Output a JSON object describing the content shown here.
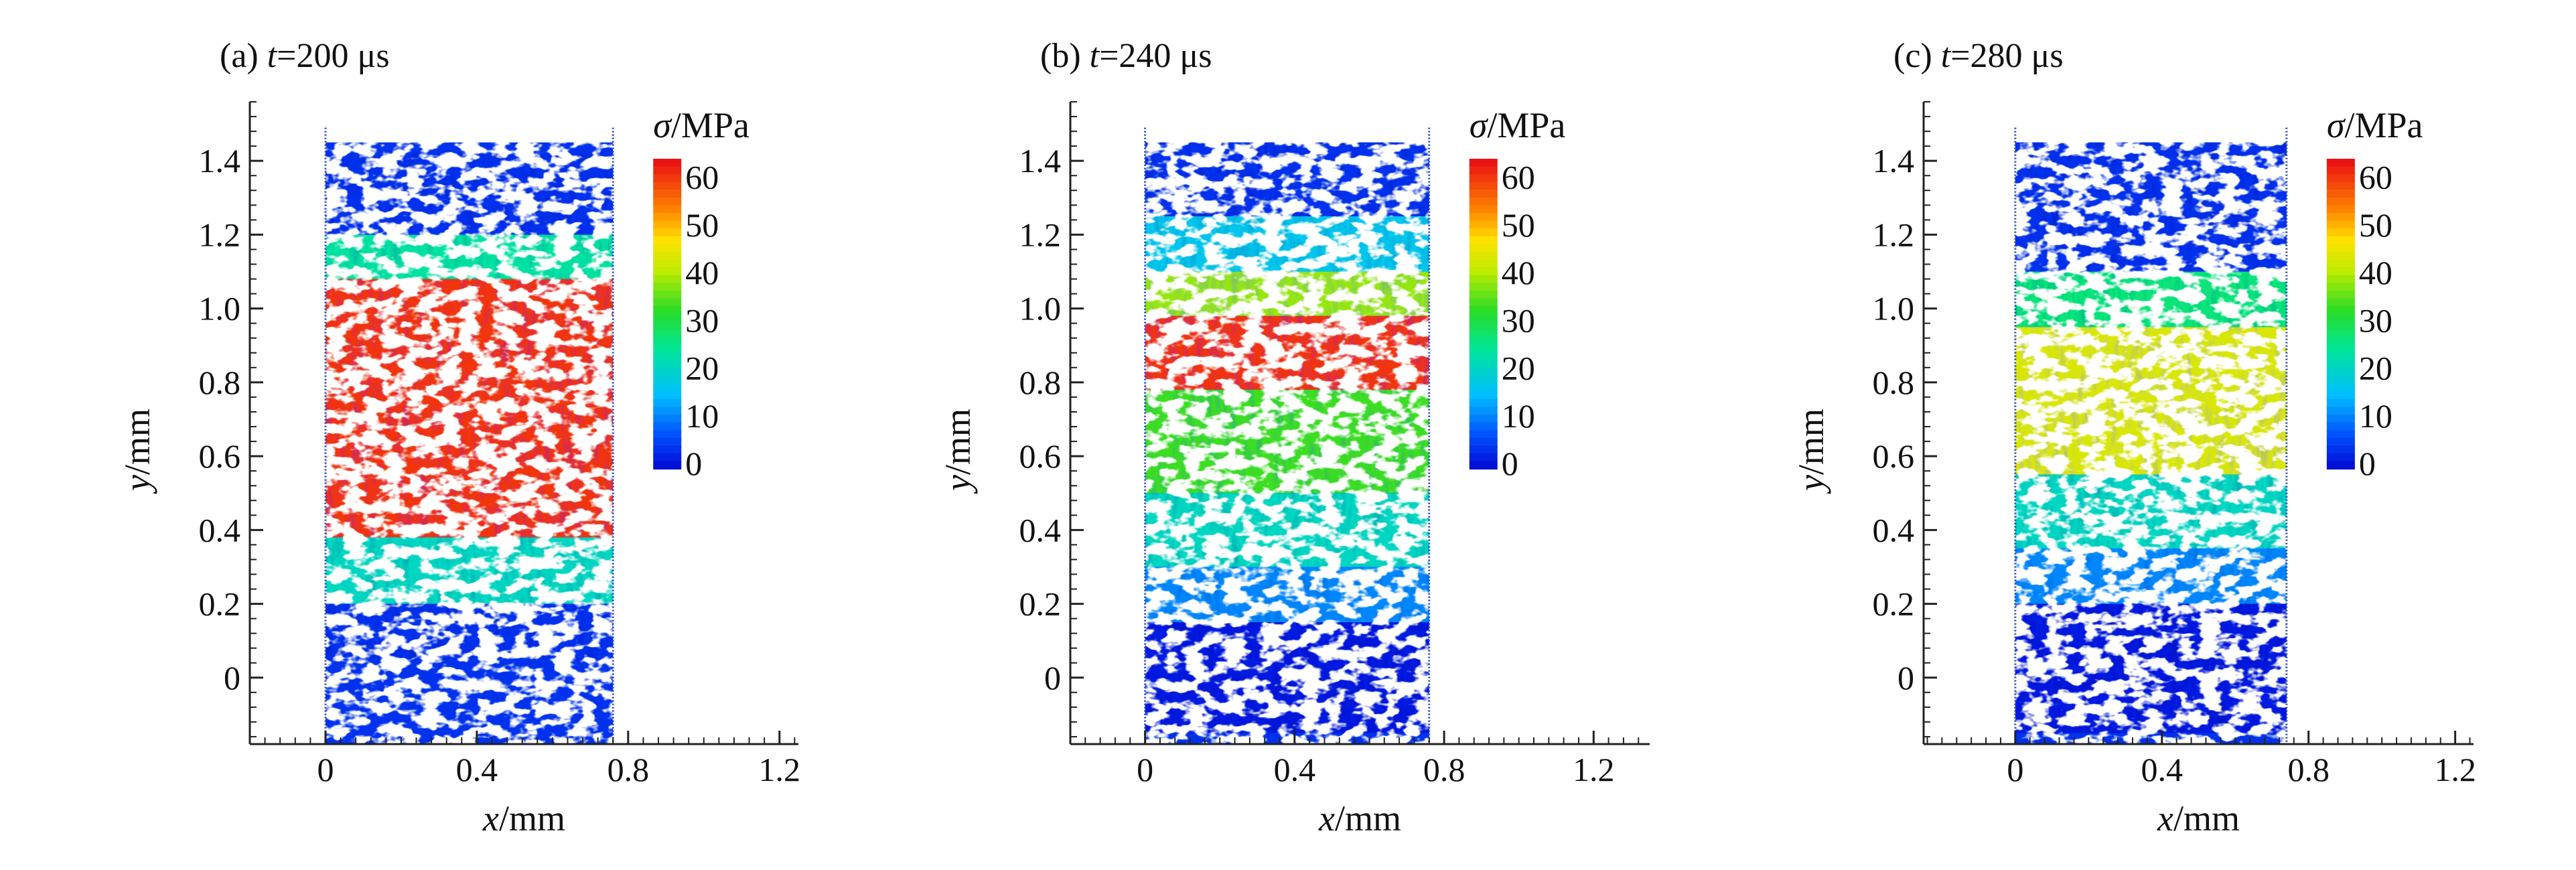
{
  "chart_data": [
    {
      "type": "heatmap",
      "panel_label": "(a)",
      "time_var": "t",
      "time_value": "=200 μs",
      "xlabel_var": "x",
      "xlabel_unit": "/mm",
      "ylabel_var": "y",
      "ylabel_unit": "/mm",
      "xlim": [
        -0.2,
        1.25
      ],
      "ylim": [
        -0.18,
        1.56
      ],
      "x_ticks": [
        "0",
        "0.4",
        "0.8",
        "1.2"
      ],
      "y_ticks": [
        "0",
        "0.2",
        "0.4",
        "0.6",
        "0.8",
        "1.0",
        "1.2",
        "1.4"
      ],
      "specimen_x_range": [
        0,
        0.76
      ],
      "colorbar": {
        "title_var": "σ",
        "title_unit": "/MPa",
        "ticks": [
          "60",
          "50",
          "40",
          "30",
          "20",
          "10",
          "0"
        ],
        "range": [
          0,
          65
        ]
      },
      "stress_bands": [
        {
          "y_range": [
            0.38,
            1.08
          ],
          "stress_MPa": 62
        },
        {
          "y_range": [
            1.08,
            1.2
          ],
          "stress_MPa": 25
        },
        {
          "y_range": [
            0.2,
            0.38
          ],
          "stress_MPa": 22
        },
        {
          "y_range": [
            1.2,
            1.42
          ],
          "stress_MPa": 5
        },
        {
          "y_range": [
            0.05,
            0.2
          ],
          "stress_MPa": 5
        }
      ]
    },
    {
      "type": "heatmap",
      "panel_label": "(b)",
      "time_var": "t",
      "time_value": "=240 μs",
      "xlabel_var": "x",
      "xlabel_unit": "/mm",
      "ylabel_var": "y",
      "ylabel_unit": "/mm",
      "xlim": [
        -0.2,
        1.35
      ],
      "ylim": [
        -0.18,
        1.56
      ],
      "x_ticks": [
        "0",
        "0.4",
        "0.8",
        "1.2"
      ],
      "y_ticks": [
        "0",
        "0.2",
        "0.4",
        "0.6",
        "0.8",
        "1.0",
        "1.2",
        "1.4"
      ],
      "specimen_x_range": [
        0,
        0.76
      ],
      "colorbar": {
        "title_var": "σ",
        "title_unit": "/MPa",
        "ticks": [
          "60",
          "50",
          "40",
          "30",
          "20",
          "10",
          "0"
        ],
        "range": [
          0,
          65
        ]
      },
      "stress_bands": [
        {
          "y_range": [
            0.78,
            0.98
          ],
          "stress_MPa": 62
        },
        {
          "y_range": [
            0.98,
            1.1
          ],
          "stress_MPa": 40
        },
        {
          "y_range": [
            0.5,
            0.78
          ],
          "stress_MPa": 35
        },
        {
          "y_range": [
            0.3,
            0.5
          ],
          "stress_MPa": 22
        },
        {
          "y_range": [
            1.1,
            1.25
          ],
          "stress_MPa": 18
        },
        {
          "y_range": [
            0.15,
            0.3
          ],
          "stress_MPa": 12
        },
        {
          "y_range": [
            1.25,
            1.45
          ],
          "stress_MPa": 5
        },
        {
          "y_range": [
            -0.15,
            0.15
          ],
          "stress_MPa": 3
        }
      ]
    },
    {
      "type": "heatmap",
      "panel_label": "(c)",
      "time_var": "t",
      "time_value": "=280 μs",
      "xlabel_var": "x",
      "xlabel_unit": "/mm",
      "ylabel_var": "y",
      "ylabel_unit": "/mm",
      "xlim": [
        -0.25,
        1.25
      ],
      "ylim": [
        -0.18,
        1.56
      ],
      "x_ticks": [
        "0",
        "0.4",
        "0.8",
        "1.2"
      ],
      "y_ticks": [
        "0",
        "0.2",
        "0.4",
        "0.6",
        "0.8",
        "1.0",
        "1.2",
        "1.4"
      ],
      "specimen_x_range": [
        0,
        0.74
      ],
      "colorbar": {
        "title_var": "σ",
        "title_unit": "/MPa",
        "ticks": [
          "60",
          "50",
          "40",
          "30",
          "20",
          "10",
          "0"
        ],
        "range": [
          0,
          65
        ]
      },
      "stress_bands": [
        {
          "y_range": [
            0.55,
            0.95
          ],
          "stress_MPa": 45
        },
        {
          "y_range": [
            0.95,
            1.1
          ],
          "stress_MPa": 28
        },
        {
          "y_range": [
            0.35,
            0.55
          ],
          "stress_MPa": 22
        },
        {
          "y_range": [
            0.2,
            0.35
          ],
          "stress_MPa": 12
        },
        {
          "y_range": [
            1.1,
            1.45
          ],
          "stress_MPa": 5
        },
        {
          "y_range": [
            -0.15,
            0.2
          ],
          "stress_MPa": 3
        }
      ]
    }
  ]
}
